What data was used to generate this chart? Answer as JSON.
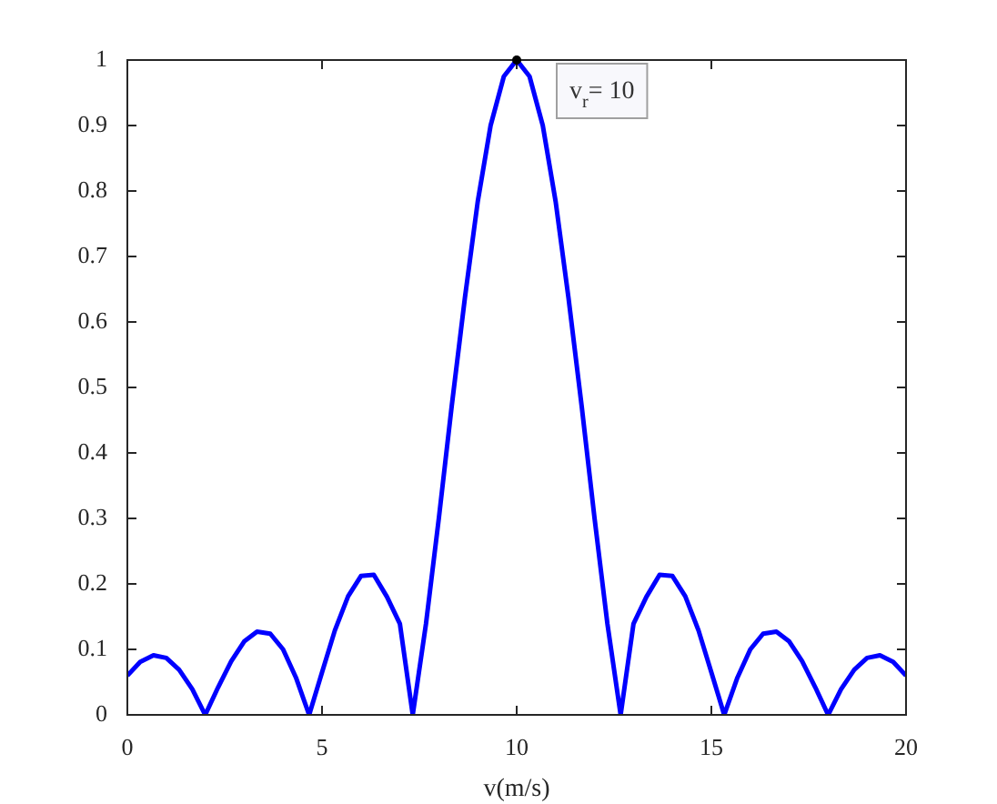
{
  "chart_data": {
    "type": "line",
    "xlabel": "v(m/s)",
    "xlim": [
      0,
      20
    ],
    "xticks": [
      0,
      5,
      10,
      15,
      20
    ],
    "ylim": [
      0,
      1
    ],
    "yticks": [
      0,
      0.1,
      0.2,
      0.3,
      0.4,
      0.5,
      0.6,
      0.7,
      0.8,
      0.9,
      1
    ],
    "marker": "none",
    "line_style": "solid",
    "series": [
      {
        "color": "#0000ff",
        "x": [
          0,
          0.33,
          0.67,
          1,
          1.33,
          1.67,
          2,
          2.33,
          2.67,
          3,
          3.33,
          3.67,
          4,
          4.33,
          4.67,
          5,
          5.33,
          5.67,
          6,
          6.33,
          6.67,
          7,
          7.33,
          7.67,
          8,
          8.33,
          8.67,
          9,
          9.33,
          9.67,
          10,
          10.33,
          10.67,
          11,
          11.33,
          11.67,
          12,
          12.33,
          12.67,
          13,
          13.33,
          13.67,
          14,
          14.33,
          14.67,
          15,
          15.33,
          15.67,
          16,
          16.33,
          16.67,
          17,
          17.33,
          17.67,
          18,
          18.33,
          18.67,
          19,
          19.33,
          19.67,
          20
        ],
        "values": [
          0.06,
          0.081,
          0.091,
          0.087,
          0.069,
          0.039,
          0,
          0.042,
          0.082,
          0.112,
          0.127,
          0.124,
          0.1,
          0.057,
          0,
          0.065,
          0.129,
          0.181,
          0.212,
          0.214,
          0.18,
          0.139,
          0,
          0.139,
          0.3,
          0.471,
          0.637,
          0.784,
          0.9,
          0.975,
          1,
          0.975,
          0.9,
          0.784,
          0.637,
          0.471,
          0.3,
          0.139,
          0,
          0.139,
          0.18,
          0.214,
          0.212,
          0.181,
          0.129,
          0.065,
          0,
          0.057,
          0.1,
          0.124,
          0.127,
          0.112,
          0.082,
          0.042,
          0,
          0.039,
          0.069,
          0.087,
          0.091,
          0.081,
          0.06
        ]
      }
    ],
    "annotations": [
      {
        "text": "v$_{r}$= 10",
        "x": 10,
        "y": 1
      }
    ]
  }
}
